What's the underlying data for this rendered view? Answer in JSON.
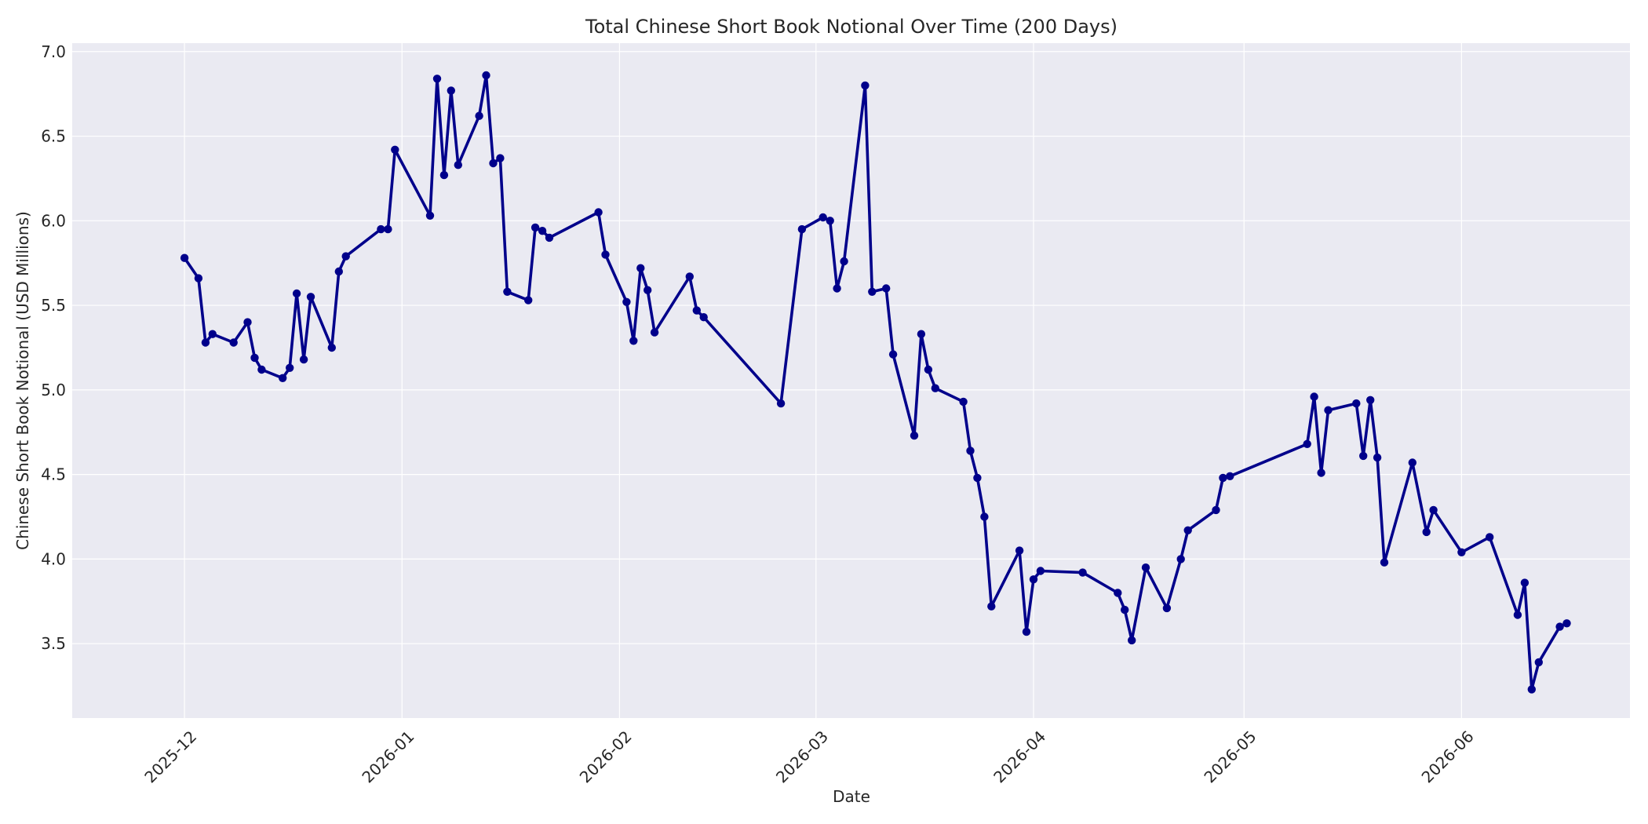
{
  "chart_data": {
    "type": "line",
    "title": "Total Chinese Short Book Notional Over Time (200 Days)",
    "xlabel": "Date",
    "ylabel": "Chinese Short Book Notional (USD Millions)",
    "xlim": [
      "2025-11-15",
      "2026-06-25"
    ],
    "ylim": [
      3.06,
      7.05
    ],
    "x_ticks": [
      "2025-12",
      "2026-01",
      "2026-02",
      "2026-03",
      "2026-04",
      "2026-05",
      "2026-06"
    ],
    "y_ticks": [
      "3.5",
      "4.0",
      "4.5",
      "5.0",
      "5.5",
      "6.0",
      "6.5",
      "7.0"
    ],
    "grid": true,
    "colors": {
      "series": "#00008b",
      "plot_bg": "#eaeaf2",
      "grid": "#ffffff"
    },
    "series": [
      {
        "x": [
          "2025-12-01",
          "2025-12-03",
          "2025-12-04",
          "2025-12-05",
          "2025-12-08",
          "2025-12-10",
          "2025-12-11",
          "2025-12-12",
          "2025-12-15",
          "2025-12-16",
          "2025-12-17",
          "2025-12-18",
          "2025-12-19",
          "2025-12-22",
          "2025-12-23",
          "2025-12-24",
          "2025-12-29",
          "2025-12-30",
          "2025-12-31",
          "2026-01-05",
          "2026-01-06",
          "2026-01-07",
          "2026-01-08",
          "2026-01-09",
          "2026-01-12",
          "2026-01-13",
          "2026-01-14",
          "2026-01-15",
          "2026-01-16",
          "2026-01-19",
          "2026-01-20",
          "2026-01-21",
          "2026-01-22",
          "2026-01-29",
          "2026-01-30",
          "2026-02-02",
          "2026-02-03",
          "2026-02-04",
          "2026-02-05",
          "2026-02-06",
          "2026-02-11",
          "2026-02-12",
          "2026-02-13",
          "2026-02-24",
          "2026-02-27",
          "2026-03-02",
          "2026-03-03",
          "2026-03-04",
          "2026-03-05",
          "2026-03-08",
          "2026-03-09",
          "2026-03-11",
          "2026-03-12",
          "2026-03-15",
          "2026-03-16",
          "2026-03-17",
          "2026-03-18",
          "2026-03-22",
          "2026-03-23",
          "2026-03-24",
          "2026-03-25",
          "2026-03-26",
          "2026-03-30",
          "2026-03-31",
          "2026-04-01",
          "2026-04-02",
          "2026-04-08",
          "2026-04-13",
          "2026-04-14",
          "2026-04-15",
          "2026-04-17",
          "2026-04-20",
          "2026-04-22",
          "2026-04-23",
          "2026-04-27",
          "2026-04-28",
          "2026-04-29",
          "2026-05-10",
          "2026-05-11",
          "2026-05-12",
          "2026-05-13",
          "2026-05-17",
          "2026-05-18",
          "2026-05-19",
          "2026-05-20",
          "2026-05-21",
          "2026-05-25",
          "2026-05-27",
          "2026-05-28",
          "2026-06-01",
          "2026-06-05",
          "2026-06-09",
          "2026-06-10",
          "2026-06-11",
          "2026-06-12",
          "2026-06-15",
          "2026-06-16"
        ],
        "values": [
          5.78,
          5.66,
          5.28,
          5.33,
          5.28,
          5.4,
          5.19,
          5.12,
          5.07,
          5.13,
          5.57,
          5.18,
          5.55,
          5.25,
          5.7,
          5.79,
          5.95,
          5.95,
          6.42,
          6.03,
          6.84,
          6.27,
          6.77,
          6.33,
          6.62,
          6.86,
          6.34,
          6.37,
          5.58,
          5.53,
          5.96,
          5.94,
          5.9,
          6.05,
          5.8,
          5.52,
          5.29,
          5.72,
          5.59,
          5.34,
          5.67,
          5.47,
          5.43,
          4.92,
          5.95,
          6.02,
          6.0,
          5.6,
          5.76,
          6.8,
          5.58,
          5.6,
          5.21,
          4.73,
          5.33,
          5.12,
          5.01,
          4.93,
          4.64,
          4.48,
          4.25,
          3.72,
          4.05,
          3.57,
          3.88,
          3.93,
          3.92,
          3.8,
          3.7,
          3.52,
          3.95,
          3.71,
          4.0,
          4.17,
          4.29,
          4.48,
          4.49,
          4.68,
          4.96,
          4.51,
          4.88,
          4.92,
          4.61,
          4.94,
          4.6,
          3.98,
          4.57,
          4.16,
          4.29,
          4.04,
          4.13,
          3.67,
          3.86,
          3.23,
          3.39,
          3.6,
          3.62
        ]
      }
    ]
  }
}
